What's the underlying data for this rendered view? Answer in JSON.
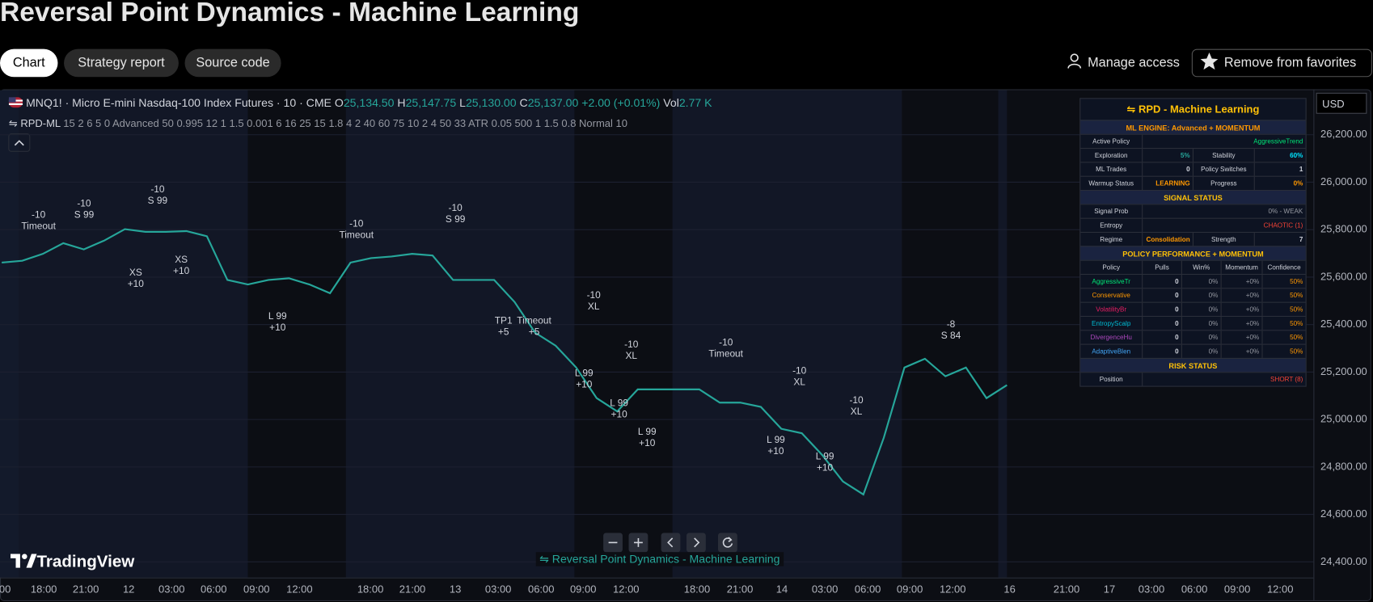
{
  "header": {
    "title": "Reversal Point Dynamics - Machine Learning",
    "tabs": [
      "Chart",
      "Strategy report",
      "Source code"
    ],
    "manage_access": "Manage access",
    "favorite": "Remove from favorites"
  },
  "symbol": {
    "name": "MNQ1! · Micro E-mini Nasdaq-100 Index Futures · 10 · CME",
    "open_label": "O",
    "open": "25,134.50",
    "high_label": "H",
    "high": "25,147.75",
    "low_label": "L",
    "low": "25,130.00",
    "close_label": "C",
    "close": "25,137.00",
    "change": "+2.00 (+0.01%)",
    "vol_label": "Vol",
    "volume": "2.77 K"
  },
  "indicator": {
    "name": "⇋ RPD-ML",
    "params": "15 2 6 5 0 Advanced 50 0.995 12 1 1.5 0.001 6 16 25 15 1.8 4 2 40 60 75 10 2 4 50 33 ATR 0.05 500 1 1.5 0.8 Normal 10"
  },
  "currency": "USD",
  "chart_data": {
    "type": "line",
    "color": "#26a69a",
    "values": [
      25661,
      25669,
      25698,
      25743,
      25717,
      25754,
      25802,
      25791,
      25791,
      25794,
      25772,
      25588,
      25569,
      25588,
      25595,
      25569,
      25532,
      25661,
      25680,
      25687,
      25698,
      25691,
      25588,
      25588,
      25588,
      25495,
      25366,
      25311,
      25219,
      25090,
      25034,
      25127,
      25127,
      25127,
      25127,
      25071,
      25071,
      25053,
      24961,
      24942,
      24850,
      24739,
      24684,
      24924,
      25219,
      25256,
      25182,
      25219,
      25090,
      25145
    ],
    "ylim": [
      24334,
      26388
    ],
    "yticks": [
      {
        "value": 24400,
        "label": "24,400.00"
      },
      {
        "value": 24600,
        "label": "24,600.00"
      },
      {
        "value": 24800,
        "label": "24,800.00"
      },
      {
        "value": 25000,
        "label": "25,000.00"
      },
      {
        "value": 25200,
        "label": "25,200.00"
      },
      {
        "value": 25400,
        "label": "25,400.00"
      },
      {
        "value": 25600,
        "label": "25,600.00"
      },
      {
        "value": 25800,
        "label": "25,800.00"
      },
      {
        "value": 26000,
        "label": "26,000.00"
      },
      {
        "value": 26200,
        "label": "26,200.00"
      }
    ],
    "xtick_labels": [
      ":00",
      "18:00",
      "21:00",
      "12",
      "03:00",
      "06:00",
      "09:00",
      "12:00",
      "18:00",
      "21:00",
      "13",
      "03:00",
      "06:00",
      "09:00",
      "12:00",
      "18:00",
      "21:00",
      "14",
      "03:00",
      "06:00",
      "09:00",
      "12:00",
      "16",
      "21:00",
      "17",
      "03:00",
      "06:00",
      "09:00",
      "12:00"
    ],
    "grid": true
  },
  "annotations": [
    [
      "-10",
      "Timeout"
    ],
    [
      "-10",
      "S 99"
    ],
    [
      "-10",
      "S 99"
    ],
    [
      "XS",
      "+10"
    ],
    [
      "XS",
      "+10"
    ],
    [
      "-10",
      "Timeout"
    ],
    [
      "L 99",
      "+10"
    ],
    [
      "-10",
      "S 99"
    ],
    [
      "TP1",
      "+5"
    ],
    [
      "Timeout",
      "+5"
    ],
    [
      "-10",
      "XL"
    ],
    [
      "L 99",
      "+10"
    ],
    [
      "-10",
      "XL"
    ],
    [
      "L 99",
      "+10"
    ],
    [
      "L 99",
      "+10"
    ],
    [
      "-10",
      "Timeout"
    ],
    [
      "-10",
      "XL"
    ],
    [
      "L 99",
      "+10"
    ],
    [
      "-10",
      "XL"
    ],
    [
      "L 99",
      "+10"
    ],
    [
      "-8",
      "S 84"
    ]
  ],
  "table": {
    "title": "⇋ RPD - Machine Learning",
    "sections": [
      {
        "heading": "ML ENGINE: Advanced + MOMENTUM",
        "rows": [
          [
            "Active Policy",
            "AggressiveTrend"
          ],
          [
            "Exploration",
            "5%",
            "Stability",
            "60%"
          ],
          [
            "ML Trades",
            "0",
            "Policy Switches",
            "1"
          ],
          [
            "Warmup Status",
            "LEARNING",
            "Progress",
            "0%"
          ]
        ]
      },
      {
        "heading": "SIGNAL STATUS",
        "rows": [
          [
            "Signal Prob",
            "0% - WEAK"
          ],
          [
            "Entropy",
            "CHAOTIC (1)"
          ],
          [
            "Regime",
            "Consolidation",
            "Strength",
            "7"
          ]
        ]
      },
      {
        "heading": "POLICY PERFORMANCE + MOMENTUM",
        "rows": [
          [
            "Policy",
            "Pulls",
            "Win%",
            "Momentum",
            "Confidence"
          ],
          [
            "AggressiveTr",
            "0",
            "0%",
            "+0%",
            "50%"
          ],
          [
            "Conservative",
            "0",
            "0%",
            "+0%",
            "50%"
          ],
          [
            "VolatilityBr",
            "0",
            "0%",
            "+0%",
            "50%"
          ],
          [
            "EntropyScalp",
            "0",
            "0%",
            "+0%",
            "50%"
          ],
          [
            "DivergenceHu",
            "0",
            "0%",
            "+0%",
            "50%"
          ],
          [
            "AdaptiveBlen",
            "0",
            "0%",
            "+0%",
            "50%"
          ]
        ]
      },
      {
        "heading": "RISK STATUS",
        "rows": [
          [
            "Position",
            "SHORT (8)"
          ]
        ]
      }
    ]
  },
  "watermark": "TradingView",
  "indicator_label": "⇋ Reversal Point Dynamics - Machine Learning"
}
